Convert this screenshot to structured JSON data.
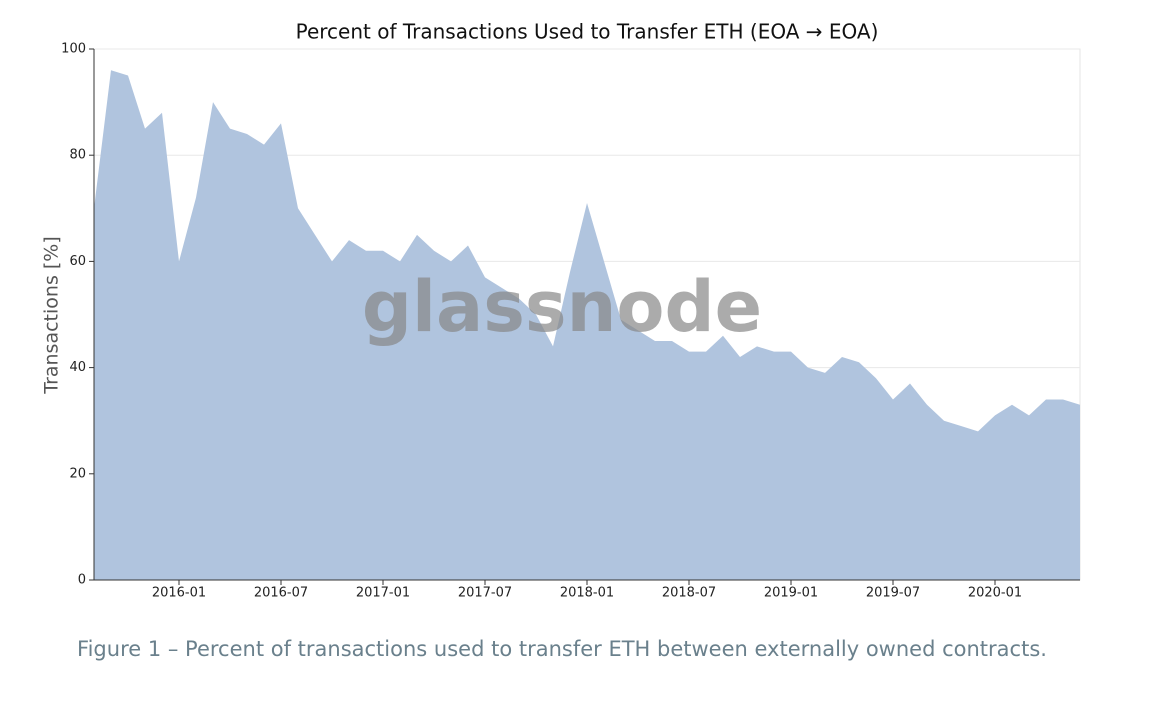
{
  "chart_data": {
    "type": "area",
    "title": "Percent of Transactions Used to Transfer ETH (EOA → EOA)",
    "ylabel": "Transactions [%]",
    "watermark": "glassnode",
    "caption": "Figure 1 – Percent of transactions used to transfer ETH between externally owned contracts.",
    "color": "#b0c4de",
    "grid": true,
    "x": [
      "2015-08",
      "2015-09",
      "2015-10",
      "2015-11",
      "2015-12",
      "2016-01",
      "2016-02",
      "2016-03",
      "2016-04",
      "2016-05",
      "2016-06",
      "2016-07",
      "2016-08",
      "2016-09",
      "2016-10",
      "2016-11",
      "2016-12",
      "2017-01",
      "2017-02",
      "2017-03",
      "2017-04",
      "2017-05",
      "2017-06",
      "2017-07",
      "2017-08",
      "2017-09",
      "2017-10",
      "2017-11",
      "2017-12",
      "2018-01",
      "2018-02",
      "2018-03",
      "2018-04",
      "2018-05",
      "2018-06",
      "2018-07",
      "2018-08",
      "2018-09",
      "2018-10",
      "2018-11",
      "2018-12",
      "2019-01",
      "2019-02",
      "2019-03",
      "2019-04",
      "2019-05",
      "2019-06",
      "2019-07",
      "2019-08",
      "2019-09",
      "2019-10",
      "2019-11",
      "2019-12",
      "2020-01",
      "2020-02",
      "2020-03",
      "2020-04",
      "2020-05",
      "2020-06"
    ],
    "values": [
      70,
      96,
      95,
      85,
      88,
      60,
      72,
      90,
      85,
      84,
      82,
      86,
      70,
      65,
      60,
      64,
      62,
      62,
      60,
      65,
      62,
      60,
      63,
      57,
      55,
      53,
      50,
      44,
      58,
      71,
      60,
      49,
      47,
      45,
      45,
      43,
      43,
      46,
      42,
      44,
      43,
      43,
      40,
      39,
      42,
      41,
      38,
      34,
      37,
      33,
      30,
      29,
      28,
      31,
      33,
      31,
      34,
      34,
      33
    ],
    "xlim": [
      "2015-08",
      "2020-06"
    ],
    "xticks": [
      "2016-01",
      "2016-07",
      "2017-01",
      "2017-07",
      "2018-01",
      "2018-07",
      "2019-01",
      "2019-07",
      "2020-01"
    ],
    "ylim": [
      0,
      100
    ],
    "yticks": [
      0,
      20,
      40,
      60,
      80,
      100
    ]
  }
}
